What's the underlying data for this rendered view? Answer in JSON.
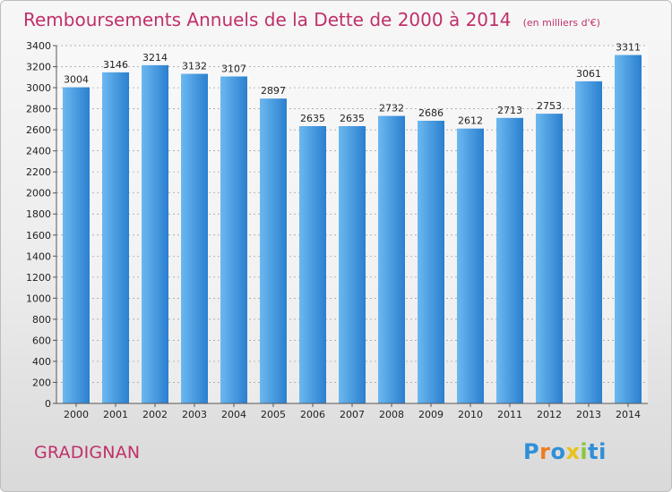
{
  "title": "Remboursements Annuels de la Dette de 2000 à 2014",
  "unit_note": "(en milliers d'€)",
  "city": "GRADIGNAN",
  "logo": {
    "letters": [
      "P",
      "r",
      "o",
      "x",
      "i",
      "t",
      "i"
    ],
    "colors": [
      "#2f8fd8",
      "#f07c1e",
      "#2f8fd8",
      "#e8c21a",
      "#8cc63f",
      "#2f8fd8",
      "#2f8fd8"
    ]
  },
  "colors": {
    "bar_light": "#6cb8f0",
    "bar_dark": "#2a7fcf",
    "title": "#c0306a"
  },
  "chart_data": {
    "type": "bar",
    "categories": [
      "2000",
      "2001",
      "2002",
      "2003",
      "2004",
      "2005",
      "2006",
      "2007",
      "2008",
      "2009",
      "2010",
      "2011",
      "2012",
      "2013",
      "2014"
    ],
    "values": [
      3004,
      3146,
      3214,
      3132,
      3107,
      2897,
      2635,
      2635,
      2732,
      2686,
      2612,
      2713,
      2753,
      3061,
      3311
    ],
    "ylim": [
      0,
      3400
    ],
    "yticks": [
      0,
      200,
      400,
      600,
      800,
      1000,
      1200,
      1400,
      1600,
      1800,
      2000,
      2200,
      2400,
      2600,
      2800,
      3000,
      3200,
      3400
    ],
    "grid": true,
    "data_labels": true
  }
}
